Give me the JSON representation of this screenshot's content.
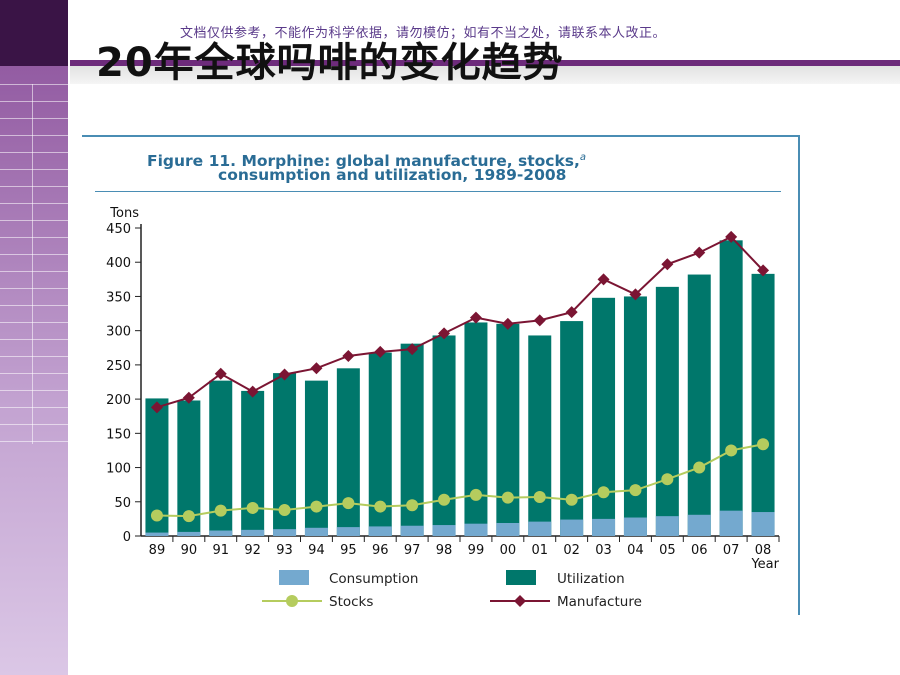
{
  "slide": {
    "watermark": "文档仅供参考，不能作为科学依据，请勿模仿；如有不当之处，请联系本人改正。",
    "title": "20年全球吗啡的变化趋势"
  },
  "figure": {
    "title_line1": "Figure 11.   Morphine: global manufacture, stocks,",
    "title_sup": "a",
    "title_line2": "consumption and utilization, 1989-2008"
  },
  "colors": {
    "consumption": "#74a9cf",
    "utilization": "#00776b",
    "stocks": "#b5cc5e",
    "manufacture": "#7b1533"
  },
  "chart_data": {
    "type": "bar",
    "ylabel": "Tons",
    "xlabel": "Year",
    "ylim": [
      0,
      450
    ],
    "yticks": [
      0,
      50,
      100,
      150,
      200,
      250,
      300,
      350,
      400,
      450
    ],
    "categories": [
      "89",
      "90",
      "91",
      "92",
      "93",
      "94",
      "95",
      "96",
      "97",
      "98",
      "99",
      "00",
      "01",
      "02",
      "03",
      "04",
      "05",
      "06",
      "07",
      "08"
    ],
    "series": [
      {
        "name": "Consumption",
        "kind": "bar",
        "values": [
          5,
          6,
          8,
          9,
          10,
          12,
          13,
          14,
          15,
          16,
          18,
          19,
          21,
          24,
          25,
          27,
          29,
          31,
          37,
          35
        ]
      },
      {
        "name": "Utilization",
        "kind": "bar",
        "values": [
          201,
          198,
          227,
          212,
          238,
          227,
          245,
          268,
          281,
          293,
          312,
          310,
          293,
          314,
          348,
          350,
          364,
          382,
          432,
          383
        ]
      },
      {
        "name": "Stocks",
        "kind": "line",
        "values": [
          30,
          29,
          37,
          41,
          38,
          43,
          48,
          43,
          45,
          53,
          60,
          56,
          57,
          53,
          64,
          67,
          83,
          100,
          125,
          134
        ]
      },
      {
        "name": "Manufacture",
        "kind": "line",
        "values": [
          188,
          202,
          237,
          211,
          236,
          245,
          263,
          269,
          273,
          296,
          319,
          310,
          315,
          327,
          375,
          353,
          397,
          414,
          437,
          388
        ]
      }
    ],
    "legend": [
      "Consumption",
      "Utilization",
      "Stocks",
      "Manufacture"
    ],
    "legend_position": "bottom"
  }
}
